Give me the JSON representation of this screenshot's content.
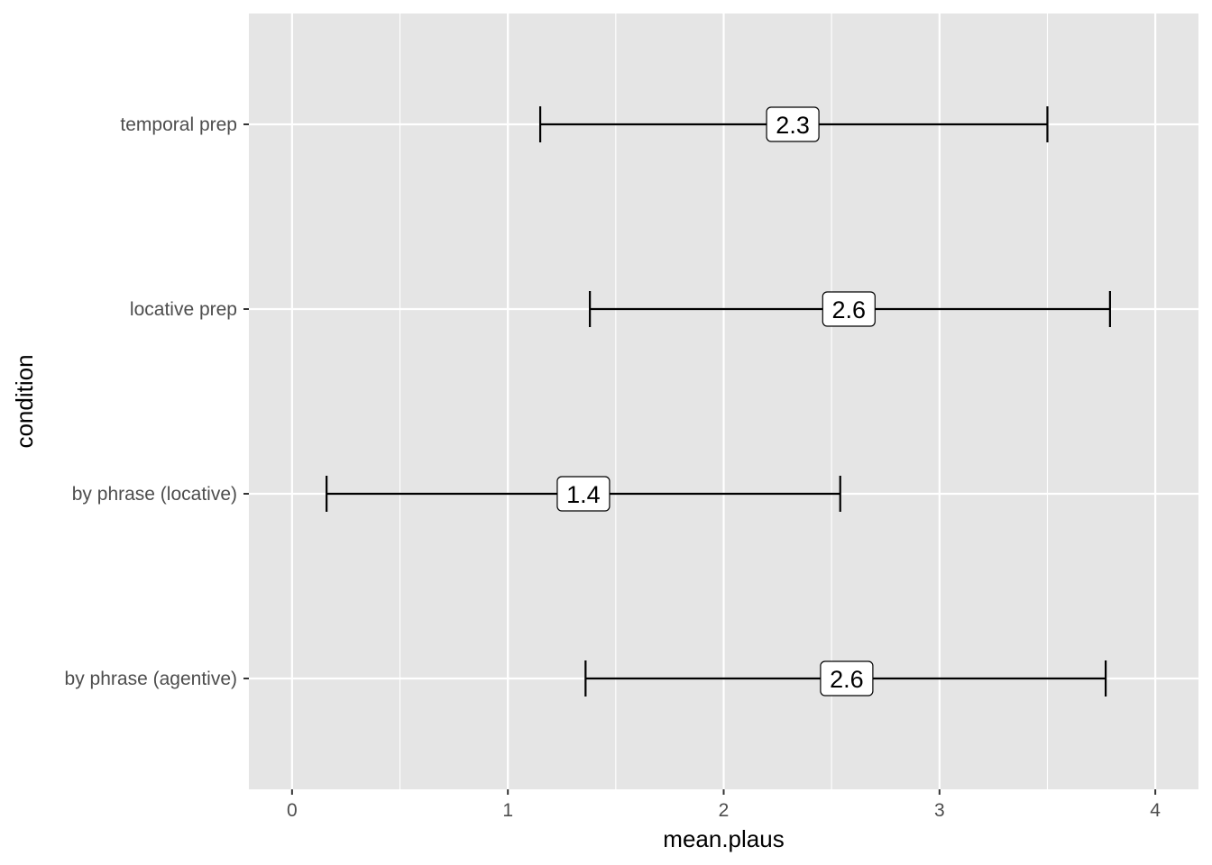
{
  "chart_data": {
    "type": "errorbar",
    "orientation": "horizontal",
    "xlabel": "mean.plaus",
    "ylabel": "condition",
    "xlim": [
      -0.2,
      4.2
    ],
    "x_ticks": [
      0,
      1,
      2,
      3,
      4
    ],
    "x_tick_labels": [
      "0",
      "1",
      "2",
      "3",
      "4"
    ],
    "categories": [
      "temporal prep",
      "locative prep",
      "by phrase (locative)",
      "by phrase (agentive)"
    ],
    "points": [
      {
        "category": "temporal prep",
        "mean": 2.32,
        "low": 1.15,
        "high": 3.5,
        "label": "2.3"
      },
      {
        "category": "locative prep",
        "mean": 2.58,
        "low": 1.38,
        "high": 3.79,
        "label": "2.6"
      },
      {
        "category": "by phrase (locative)",
        "mean": 1.35,
        "low": 0.16,
        "high": 2.54,
        "label": "1.4"
      },
      {
        "category": "by phrase (agentive)",
        "mean": 2.57,
        "low": 1.36,
        "high": 3.77,
        "label": "2.6"
      }
    ],
    "grid": true,
    "legend": "none",
    "colors": {
      "panel_background": "#e5e5e5",
      "grid_line": "#ffffff",
      "error_bar": "#000000",
      "label_fill": "#ffffff",
      "tick_text": "#4d4d4d",
      "axis_title": "#000000"
    }
  }
}
